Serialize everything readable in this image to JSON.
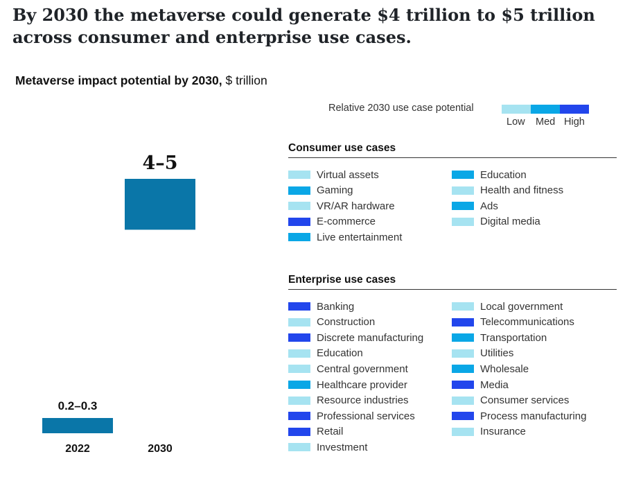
{
  "headline": "By 2030 the metaverse could generate $4 trillion to $5 trillion across consumer and enterprise use cases.",
  "chart_title_bold": "Metaverse impact potential by 2030,",
  "chart_title_unit": "$ trillion",
  "colors": {
    "bar": "#0a76a8",
    "low": "#a6e3f1",
    "med": "#0aa7e6",
    "high": "#2246ec"
  },
  "chart_data": {
    "type": "bar",
    "categories": [
      "2022",
      "2030"
    ],
    "ranges": [
      [
        0.2,
        0.3
      ],
      [
        4,
        5
      ]
    ],
    "value_labels": [
      "0.2–0.3",
      "4–5"
    ],
    "title": "Metaverse impact potential by 2030, $ trillion",
    "ylabel": "",
    "ylim": [
      0,
      5
    ]
  },
  "legend": {
    "label": "Relative 2030 use case potential",
    "levels": [
      {
        "key": "low",
        "label": "Low"
      },
      {
        "key": "med",
        "label": "Med"
      },
      {
        "key": "high",
        "label": "High"
      }
    ]
  },
  "consumer": {
    "title": "Consumer use cases",
    "col1": [
      {
        "label": "Virtual assets",
        "level": "low"
      },
      {
        "label": "Gaming",
        "level": "med"
      },
      {
        "label": "VR/AR hardware",
        "level": "low"
      },
      {
        "label": "E-commerce",
        "level": "high"
      },
      {
        "label": "Live entertainment",
        "level": "med"
      }
    ],
    "col2": [
      {
        "label": "Education",
        "level": "med"
      },
      {
        "label": "Health and fitness",
        "level": "low"
      },
      {
        "label": "Ads",
        "level": "med"
      },
      {
        "label": "Digital media",
        "level": "low"
      }
    ]
  },
  "enterprise": {
    "title": "Enterprise use cases",
    "col1": [
      {
        "label": "Banking",
        "level": "high"
      },
      {
        "label": "Construction",
        "level": "low"
      },
      {
        "label": "Discrete manufacturing",
        "level": "high"
      },
      {
        "label": "Education",
        "level": "low"
      },
      {
        "label": "Central government",
        "level": "low"
      },
      {
        "label": "Healthcare provider",
        "level": "med"
      },
      {
        "label": "Resource industries",
        "level": "low"
      },
      {
        "label": "Professional services",
        "level": "high"
      },
      {
        "label": "Retail",
        "level": "high"
      },
      {
        "label": "Investment",
        "level": "low"
      }
    ],
    "col2": [
      {
        "label": "Local government",
        "level": "low"
      },
      {
        "label": "Telecommunications",
        "level": "high"
      },
      {
        "label": "Transportation",
        "level": "med"
      },
      {
        "label": "Utilities",
        "level": "low"
      },
      {
        "label": "Wholesale",
        "level": "med"
      },
      {
        "label": "Media",
        "level": "high"
      },
      {
        "label": "Consumer services",
        "level": "low"
      },
      {
        "label": "Process manufacturing",
        "level": "high"
      },
      {
        "label": "Insurance",
        "level": "low"
      }
    ]
  }
}
